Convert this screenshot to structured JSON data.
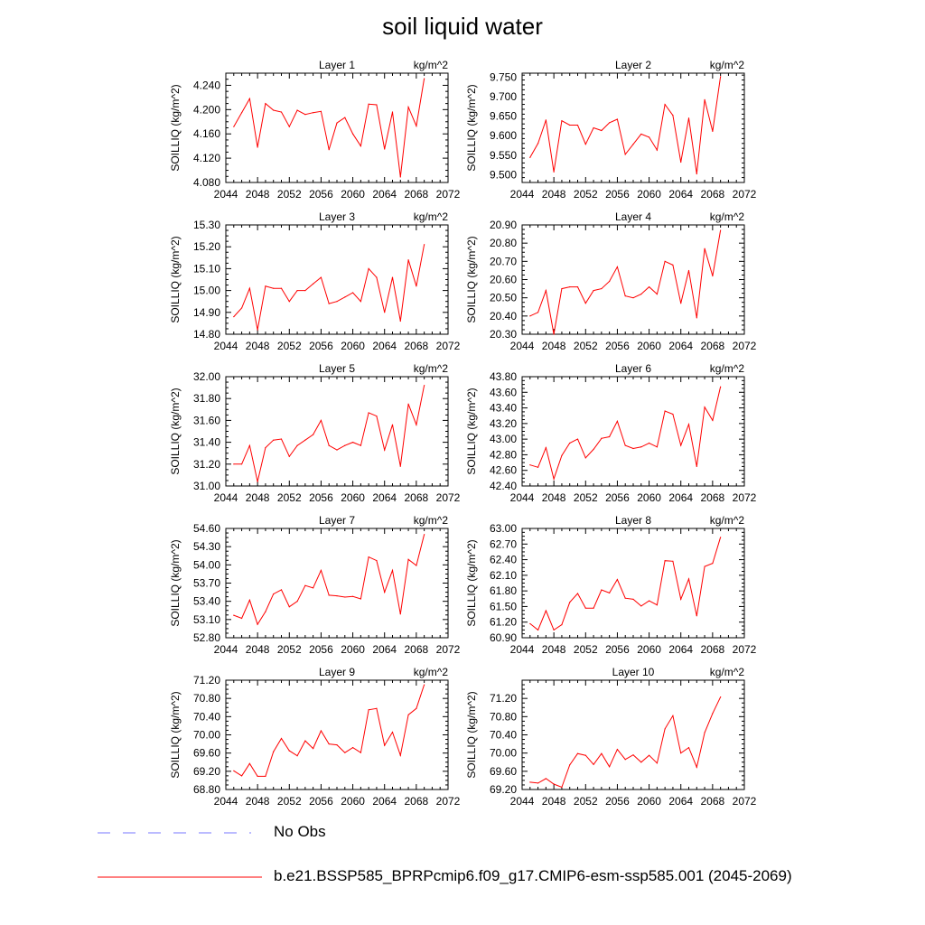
{
  "title": "soil liquid water",
  "legend": {
    "entries": [
      {
        "label": "No Obs",
        "color": "#7777ff",
        "style": "dashed"
      },
      {
        "label": "b.e21.BSSP585_BPRPcmip6.f09_g17.CMIP6-esm-ssp585.001 (2045-2069)",
        "color": "#ff0000",
        "style": "solid"
      }
    ]
  },
  "chart_data": [
    {
      "type": "line",
      "title": "Layer 1",
      "units": "kg/m^2",
      "ylabel": "SOILLIQ  (kg/m^2)",
      "xlim": [
        2044,
        2072
      ],
      "xticks": [
        "2044",
        "2048",
        "2052",
        "2056",
        "2060",
        "2064",
        "2068",
        "2072"
      ],
      "ylim": [
        4.08,
        4.26
      ],
      "yticks": [
        "4.080",
        "4.120",
        "4.160",
        "4.200",
        "4.240"
      ],
      "series": [
        {
          "x": [
            2045,
            2046,
            2047,
            2048,
            2049,
            2050,
            2051,
            2052,
            2053,
            2054,
            2055,
            2056,
            2057,
            2058,
            2059,
            2060,
            2061,
            2062,
            2063,
            2064,
            2065,
            2066,
            2067,
            2068,
            2069
          ],
          "values": [
            4.172,
            4.195,
            4.218,
            4.138,
            4.21,
            4.199,
            4.196,
            4.172,
            4.199,
            4.192,
            4.195,
            4.197,
            4.134,
            4.178,
            4.187,
            4.16,
            4.14,
            4.209,
            4.208,
            4.135,
            4.196,
            4.089,
            4.204,
            4.173,
            4.251
          ]
        }
      ]
    },
    {
      "type": "line",
      "title": "Layer 2",
      "units": "kg/m^2",
      "ylabel": "SOILLIQ  (kg/m^2)",
      "xlim": [
        2044,
        2072
      ],
      "xticks": [
        "2044",
        "2048",
        "2052",
        "2056",
        "2060",
        "2064",
        "2068",
        "2072"
      ],
      "ylim": [
        9.48,
        9.76
      ],
      "yticks": [
        "9.500",
        "9.550",
        "9.600",
        "9.650",
        "9.700",
        "9.750"
      ],
      "series": [
        {
          "x": [
            2045,
            2046,
            2047,
            2048,
            2049,
            2050,
            2051,
            2052,
            2053,
            2054,
            2055,
            2056,
            2057,
            2058,
            2059,
            2060,
            2061,
            2062,
            2063,
            2064,
            2065,
            2066,
            2067,
            2068,
            2069
          ],
          "values": [
            9.544,
            9.58,
            9.64,
            9.507,
            9.638,
            9.627,
            9.627,
            9.578,
            9.62,
            9.613,
            9.633,
            9.642,
            9.552,
            9.578,
            9.604,
            9.596,
            9.563,
            9.68,
            9.652,
            9.532,
            9.645,
            9.502,
            9.692,
            9.611,
            9.751
          ]
        }
      ]
    },
    {
      "type": "line",
      "title": "Layer 3",
      "units": "kg/m^2",
      "ylabel": "SOILLIQ  (kg/m^2)",
      "xlim": [
        2044,
        2072
      ],
      "xticks": [
        "2044",
        "2048",
        "2052",
        "2056",
        "2060",
        "2064",
        "2068",
        "2072"
      ],
      "ylim": [
        14.8,
        15.3
      ],
      "yticks": [
        "14.80",
        "14.90",
        "15.00",
        "15.10",
        "15.20",
        "15.30"
      ],
      "series": [
        {
          "x": [
            2045,
            2046,
            2047,
            2048,
            2049,
            2050,
            2051,
            2052,
            2053,
            2054,
            2055,
            2056,
            2057,
            2058,
            2059,
            2060,
            2061,
            2062,
            2063,
            2064,
            2065,
            2066,
            2067,
            2068,
            2069
          ],
          "values": [
            14.88,
            14.92,
            15.01,
            14.82,
            15.02,
            15.01,
            15.01,
            14.95,
            15.0,
            15.0,
            15.03,
            15.06,
            14.94,
            14.95,
            14.97,
            14.99,
            14.95,
            15.1,
            15.06,
            14.9,
            15.06,
            14.86,
            15.14,
            15.02,
            15.21
          ]
        }
      ]
    },
    {
      "type": "line",
      "title": "Layer 4",
      "units": "kg/m^2",
      "ylabel": "SOILLIQ  (kg/m^2)",
      "xlim": [
        2044,
        2072
      ],
      "xticks": [
        "2044",
        "2048",
        "2052",
        "2056",
        "2060",
        "2064",
        "2068",
        "2072"
      ],
      "ylim": [
        20.3,
        20.9
      ],
      "yticks": [
        "20.30",
        "20.40",
        "20.50",
        "20.60",
        "20.70",
        "20.80",
        "20.90"
      ],
      "series": [
        {
          "x": [
            2045,
            2046,
            2047,
            2048,
            2049,
            2050,
            2051,
            2052,
            2053,
            2054,
            2055,
            2056,
            2057,
            2058,
            2059,
            2060,
            2061,
            2062,
            2063,
            2064,
            2065,
            2066,
            2067,
            2068,
            2069
          ],
          "values": [
            20.4,
            20.42,
            20.54,
            20.3,
            20.55,
            20.56,
            20.56,
            20.47,
            20.54,
            20.55,
            20.59,
            20.67,
            20.51,
            20.5,
            20.52,
            20.56,
            20.52,
            20.7,
            20.68,
            20.47,
            20.65,
            20.39,
            20.77,
            20.62,
            20.87
          ]
        }
      ]
    },
    {
      "type": "line",
      "title": "Layer 5",
      "units": "kg/m^2",
      "ylabel": "SOILLIQ  (kg/m^2)",
      "xlim": [
        2044,
        2072
      ],
      "xticks": [
        "2044",
        "2048",
        "2052",
        "2056",
        "2060",
        "2064",
        "2068",
        "2072"
      ],
      "ylim": [
        31.0,
        32.0
      ],
      "yticks": [
        "31.00",
        "31.20",
        "31.40",
        "31.60",
        "31.80",
        "32.00"
      ],
      "series": [
        {
          "x": [
            2045,
            2046,
            2047,
            2048,
            2049,
            2050,
            2051,
            2052,
            2053,
            2054,
            2055,
            2056,
            2057,
            2058,
            2059,
            2060,
            2061,
            2062,
            2063,
            2064,
            2065,
            2066,
            2067,
            2068,
            2069
          ],
          "values": [
            31.2,
            31.2,
            31.37,
            31.04,
            31.35,
            31.42,
            31.43,
            31.27,
            31.37,
            31.42,
            31.47,
            31.6,
            31.37,
            31.33,
            31.37,
            31.4,
            31.37,
            31.67,
            31.64,
            31.33,
            31.56,
            31.18,
            31.75,
            31.56,
            31.92
          ]
        }
      ]
    },
    {
      "type": "line",
      "title": "Layer 6",
      "units": "kg/m^2",
      "ylabel": "SOILLIQ  (kg/m^2)",
      "xlim": [
        2044,
        2072
      ],
      "xticks": [
        "2044",
        "2048",
        "2052",
        "2056",
        "2060",
        "2064",
        "2068",
        "2072"
      ],
      "ylim": [
        42.4,
        43.8
      ],
      "yticks": [
        "42.40",
        "42.60",
        "42.80",
        "43.00",
        "43.20",
        "43.40",
        "43.60",
        "43.80"
      ],
      "series": [
        {
          "x": [
            2045,
            2046,
            2047,
            2048,
            2049,
            2050,
            2051,
            2052,
            2053,
            2054,
            2055,
            2056,
            2057,
            2058,
            2059,
            2060,
            2061,
            2062,
            2063,
            2064,
            2065,
            2066,
            2067,
            2068,
            2069
          ],
          "values": [
            42.67,
            42.64,
            42.89,
            42.49,
            42.79,
            42.95,
            43.0,
            42.76,
            42.87,
            43.01,
            43.03,
            43.23,
            42.92,
            42.88,
            42.9,
            42.95,
            42.9,
            43.36,
            43.32,
            42.92,
            43.19,
            42.65,
            43.41,
            43.24,
            43.67
          ]
        }
      ]
    },
    {
      "type": "line",
      "title": "Layer 7",
      "units": "kg/m^2",
      "ylabel": "SOILLIQ  (kg/m^2)",
      "xlim": [
        2044,
        2072
      ],
      "xticks": [
        "2044",
        "2048",
        "2052",
        "2056",
        "2060",
        "2064",
        "2068",
        "2072"
      ],
      "ylim": [
        52.8,
        54.6
      ],
      "yticks": [
        "52.80",
        "53.10",
        "53.40",
        "53.70",
        "54.00",
        "54.30",
        "54.60"
      ],
      "series": [
        {
          "x": [
            2045,
            2046,
            2047,
            2048,
            2049,
            2050,
            2051,
            2052,
            2053,
            2054,
            2055,
            2056,
            2057,
            2058,
            2059,
            2060,
            2061,
            2062,
            2063,
            2064,
            2065,
            2066,
            2067,
            2068,
            2069
          ],
          "values": [
            53.17,
            53.12,
            53.42,
            53.02,
            53.23,
            53.52,
            53.59,
            53.31,
            53.4,
            53.66,
            53.62,
            53.91,
            53.5,
            53.49,
            53.47,
            53.48,
            53.44,
            54.13,
            54.07,
            53.55,
            53.91,
            53.19,
            54.09,
            53.99,
            54.5
          ]
        }
      ]
    },
    {
      "type": "line",
      "title": "Layer 8",
      "units": "kg/m^2",
      "ylabel": "SOILLIQ  (kg/m^2)",
      "xlim": [
        2044,
        2072
      ],
      "xticks": [
        "2044",
        "2048",
        "2052",
        "2056",
        "2060",
        "2064",
        "2068",
        "2072"
      ],
      "ylim": [
        60.9,
        63.0
      ],
      "yticks": [
        "60.90",
        "61.20",
        "61.50",
        "61.80",
        "62.10",
        "62.40",
        "62.70",
        "63.00"
      ],
      "series": [
        {
          "x": [
            2045,
            2046,
            2047,
            2048,
            2049,
            2050,
            2051,
            2052,
            2053,
            2054,
            2055,
            2056,
            2057,
            2058,
            2059,
            2060,
            2061,
            2062,
            2063,
            2064,
            2065,
            2066,
            2067,
            2068,
            2069
          ],
          "values": [
            61.17,
            61.05,
            61.42,
            61.05,
            61.15,
            61.58,
            61.75,
            61.47,
            61.47,
            61.82,
            61.76,
            62.02,
            61.66,
            61.64,
            61.51,
            61.61,
            61.53,
            62.38,
            62.37,
            61.64,
            62.03,
            61.32,
            62.27,
            62.33,
            62.83
          ]
        }
      ]
    },
    {
      "type": "line",
      "title": "Layer 9",
      "units": "kg/m^2",
      "ylabel": "SOILLIQ  (kg/m^2)",
      "xlim": [
        2044,
        2072
      ],
      "xticks": [
        "2044",
        "2048",
        "2052",
        "2056",
        "2060",
        "2064",
        "2068",
        "2072"
      ],
      "ylim": [
        68.8,
        71.2
      ],
      "yticks": [
        "68.80",
        "69.20",
        "69.60",
        "70.00",
        "70.40",
        "70.80",
        "71.20"
      ],
      "series": [
        {
          "x": [
            2045,
            2046,
            2047,
            2048,
            2049,
            2050,
            2051,
            2052,
            2053,
            2054,
            2055,
            2056,
            2057,
            2058,
            2059,
            2060,
            2061,
            2062,
            2063,
            2064,
            2065,
            2066,
            2067,
            2068,
            2069
          ],
          "values": [
            69.21,
            69.1,
            69.37,
            69.09,
            69.09,
            69.63,
            69.92,
            69.65,
            69.54,
            69.87,
            69.7,
            70.09,
            69.8,
            69.78,
            69.61,
            69.72,
            69.61,
            70.55,
            70.58,
            69.77,
            70.06,
            69.55,
            70.44,
            70.58,
            71.1
          ]
        }
      ]
    },
    {
      "type": "line",
      "title": "Layer 10",
      "units": "kg/m^2",
      "ylabel": "SOILLIQ  (kg/m^2)",
      "xlim": [
        2044,
        2072
      ],
      "xticks": [
        "2044",
        "2048",
        "2052",
        "2056",
        "2060",
        "2064",
        "2068",
        "2072"
      ],
      "ylim": [
        69.2,
        71.6
      ],
      "yticks": [
        "69.20",
        "69.60",
        "70.00",
        "70.40",
        "70.80",
        "71.20"
      ],
      "series": [
        {
          "x": [
            2045,
            2046,
            2047,
            2048,
            2049,
            2050,
            2051,
            2052,
            2053,
            2054,
            2055,
            2056,
            2057,
            2058,
            2059,
            2060,
            2061,
            2062,
            2063,
            2064,
            2065,
            2066,
            2067,
            2068,
            2069
          ],
          "values": [
            69.36,
            69.34,
            69.44,
            69.32,
            69.25,
            69.74,
            69.99,
            69.95,
            69.75,
            69.99,
            69.7,
            70.08,
            69.86,
            69.96,
            69.8,
            69.95,
            69.78,
            70.53,
            70.82,
            70.0,
            70.12,
            69.69,
            70.45,
            70.87,
            71.23
          ]
        }
      ]
    }
  ]
}
